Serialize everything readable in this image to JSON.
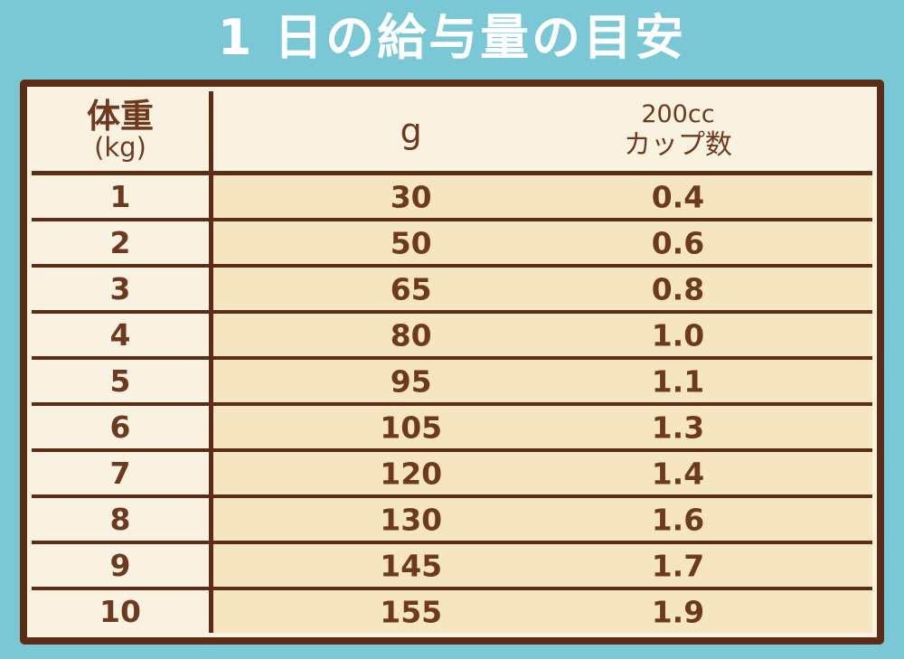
{
  "page": {
    "background_color": "#7AC7D6",
    "title": "1 日の給与量の目安",
    "title_color": "#FFFFFF"
  },
  "colors": {
    "border_brown": "#5D2C15",
    "text_brown": "#6E3A1F",
    "cream": "#FAF2E0",
    "tan": "#F5E6C1"
  },
  "table": {
    "header": {
      "weight_label": "体重",
      "weight_unit": "(kg)",
      "grams_label": "g",
      "cups_label_line1": "200cc",
      "cups_label_line2": "カップ数"
    },
    "rows": [
      {
        "weight": "1",
        "grams": "30",
        "cups": "0.4"
      },
      {
        "weight": "2",
        "grams": "50",
        "cups": "0.6"
      },
      {
        "weight": "3",
        "grams": "65",
        "cups": "0.8"
      },
      {
        "weight": "4",
        "grams": "80",
        "cups": "1.0"
      },
      {
        "weight": "5",
        "grams": "95",
        "cups": "1.1"
      },
      {
        "weight": "6",
        "grams": "105",
        "cups": "1.3"
      },
      {
        "weight": "7",
        "grams": "120",
        "cups": "1.4"
      },
      {
        "weight": "8",
        "grams": "130",
        "cups": "1.6"
      },
      {
        "weight": "9",
        "grams": "145",
        "cups": "1.7"
      },
      {
        "weight": "10",
        "grams": "155",
        "cups": "1.9"
      }
    ]
  },
  "chart_data": {
    "type": "table",
    "title": "1日の給与量の目安",
    "columns": [
      "体重(kg)",
      "g",
      "200ccカップ数"
    ],
    "rows": [
      [
        1,
        30,
        0.4
      ],
      [
        2,
        50,
        0.6
      ],
      [
        3,
        65,
        0.8
      ],
      [
        4,
        80,
        1.0
      ],
      [
        5,
        95,
        1.1
      ],
      [
        6,
        105,
        1.3
      ],
      [
        7,
        120,
        1.4
      ],
      [
        8,
        130,
        1.6
      ],
      [
        9,
        145,
        1.7
      ],
      [
        10,
        155,
        1.9
      ]
    ]
  }
}
